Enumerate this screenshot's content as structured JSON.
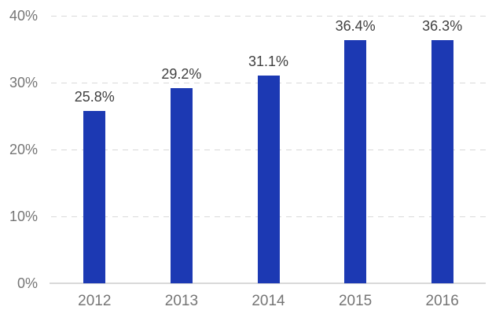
{
  "chart_data": {
    "type": "bar",
    "title": "",
    "xlabel": "",
    "ylabel": "",
    "categories": [
      "2012",
      "2013",
      "2014",
      "2015",
      "2016"
    ],
    "values": [
      25.8,
      29.2,
      31.1,
      36.4,
      36.3
    ],
    "data_labels": [
      "25.8%",
      "29.2%",
      "31.1%",
      "36.4%",
      "36.3%"
    ],
    "y_tick_labels": [
      "0%",
      "10%",
      "20%",
      "30%",
      "40%"
    ],
    "y_tick_values": [
      0,
      10,
      20,
      30,
      40
    ],
    "ylim": [
      0,
      40
    ],
    "grid": "horizontal-dashed",
    "legend": "none",
    "colors": {
      "bar": "#1c39b3",
      "gridline": "#d9d9d9",
      "baseline": "#d9d9d9",
      "axis_label": "#757575",
      "data_label": "#404040",
      "background": "#ffffff"
    }
  }
}
